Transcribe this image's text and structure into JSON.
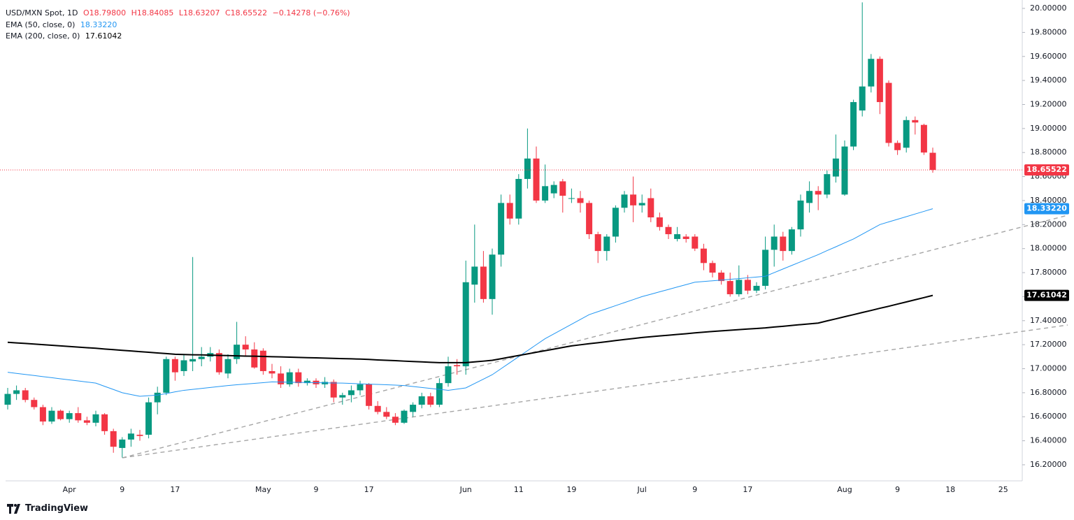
{
  "chart_data": {
    "type": "candlestick",
    "title": "USD/MXN Spot, 1D",
    "header_labels": {
      "open": "O18.79800",
      "high": "H18.84085",
      "low": "L18.63207",
      "close": "C18.65522",
      "change": "−0.14278 (−0.76%)"
    },
    "last_label": "18.65522",
    "up_color": "#089981",
    "down_color": "#f23645",
    "categories": [
      null,
      null,
      null,
      null,
      null,
      null,
      null,
      "Apr",
      null,
      null,
      null,
      null,
      null,
      "9",
      null,
      null,
      null,
      null,
      null,
      "17",
      null,
      null,
      null,
      null,
      null,
      null,
      null,
      null,
      null,
      "May",
      null,
      null,
      null,
      null,
      null,
      "9",
      null,
      null,
      null,
      null,
      null,
      "17",
      null,
      null,
      null,
      null,
      null,
      null,
      null,
      null,
      null,
      null,
      "Jun",
      null,
      null,
      null,
      null,
      null,
      "11",
      null,
      null,
      null,
      null,
      null,
      "19",
      null,
      null,
      null,
      null,
      null,
      null,
      null,
      "Jul",
      null,
      null,
      null,
      null,
      null,
      "9",
      null,
      null,
      null,
      null,
      null,
      "17",
      null,
      null,
      null,
      null,
      null,
      null,
      null,
      null,
      null,
      null,
      "Aug",
      null,
      null,
      null,
      null,
      null,
      "9",
      null,
      null,
      null,
      null,
      null,
      "18",
      null,
      null,
      null,
      null,
      null,
      "25"
    ],
    "open": [
      16.7,
      16.79,
      16.82,
      16.74,
      16.68,
      16.56,
      16.65,
      16.58,
      16.63,
      16.57,
      16.55,
      16.62,
      16.48,
      16.34,
      16.41,
      16.45,
      16.45,
      16.72,
      16.8,
      17.08,
      16.98,
      17.06,
      17.08,
      17.1,
      17.13,
      16.96,
      17.08,
      17.2,
      17.16,
      17.15,
      16.98,
      16.96,
      16.87,
      16.97,
      16.88,
      16.9,
      16.87,
      16.89,
      16.76,
      16.78,
      16.82,
      16.87,
      16.69,
      16.64,
      16.6,
      16.55,
      16.64,
      16.7,
      16.77,
      16.7,
      16.88,
      17.03,
      17.02,
      17.7,
      17.85,
      17.58,
      17.95,
      18.38,
      18.25,
      18.58,
      18.75,
      18.4,
      18.46,
      18.56,
      18.42,
      18.42,
      18.38,
      18.12,
      17.98,
      18.1,
      18.34,
      18.45,
      18.36,
      18.42,
      18.26,
      18.18,
      18.08,
      18.1,
      18.1,
      18.0,
      17.88,
      17.8,
      17.73,
      17.62,
      17.74,
      17.65,
      17.69,
      17.99,
      18.1,
      17.98,
      18.16,
      18.38,
      18.48,
      18.45,
      18.6,
      18.45,
      18.85,
      19.15,
      19.35,
      19.58,
      19.38,
      18.88,
      18.84,
      19.07,
      19.03,
      18.798,
      null,
      null,
      null,
      null,
      null,
      null,
      null,
      null
    ],
    "high": [
      16.84,
      16.86,
      16.84,
      16.76,
      16.7,
      16.68,
      16.66,
      16.65,
      16.68,
      16.6,
      16.65,
      16.63,
      16.5,
      16.43,
      16.5,
      16.49,
      16.76,
      16.85,
      17.1,
      17.1,
      17.12,
      17.93,
      17.18,
      17.18,
      17.16,
      17.12,
      17.39,
      17.27,
      17.22,
      17.17,
      17.04,
      17.02,
      17.0,
      17.0,
      16.92,
      16.92,
      16.93,
      16.91,
      16.8,
      16.86,
      16.9,
      16.88,
      16.73,
      16.68,
      16.63,
      16.66,
      16.72,
      16.8,
      16.8,
      16.92,
      17.1,
      17.08,
      17.9,
      18.2,
      17.98,
      18.0,
      18.45,
      18.45,
      18.62,
      19.0,
      18.85,
      18.7,
      18.56,
      18.58,
      18.5,
      18.48,
      18.4,
      18.14,
      18.12,
      18.36,
      18.48,
      18.6,
      18.45,
      18.5,
      18.3,
      18.2,
      18.18,
      18.12,
      18.12,
      18.04,
      17.9,
      17.82,
      17.8,
      17.86,
      17.78,
      17.72,
      18.1,
      18.2,
      18.14,
      18.18,
      18.45,
      18.56,
      18.52,
      18.65,
      18.95,
      18.9,
      19.24,
      20.05,
      19.62,
      19.6,
      19.4,
      18.9,
      19.1,
      19.1,
      19.04,
      18.84085,
      null,
      null,
      null,
      null,
      null,
      null,
      null,
      null
    ],
    "low": [
      16.66,
      16.74,
      16.72,
      16.66,
      16.53,
      16.54,
      16.57,
      16.55,
      16.55,
      16.53,
      16.52,
      16.45,
      16.3,
      16.26,
      16.35,
      16.4,
      16.42,
      16.62,
      16.78,
      16.9,
      16.94,
      16.98,
      17.02,
      17.06,
      16.95,
      16.92,
      17.04,
      17.1,
      17.0,
      16.95,
      16.92,
      16.84,
      16.85,
      16.85,
      16.86,
      16.84,
      16.84,
      16.72,
      16.7,
      16.72,
      16.78,
      16.66,
      16.62,
      16.58,
      16.53,
      16.54,
      16.6,
      16.67,
      16.68,
      16.68,
      16.85,
      16.95,
      16.95,
      17.55,
      17.55,
      17.45,
      17.85,
      18.2,
      18.2,
      18.5,
      18.38,
      18.38,
      18.42,
      18.3,
      18.38,
      18.3,
      18.08,
      17.88,
      17.9,
      18.05,
      18.3,
      18.22,
      18.3,
      18.22,
      18.15,
      18.08,
      18.06,
      18.05,
      17.98,
      17.82,
      17.76,
      17.7,
      17.6,
      17.6,
      17.62,
      17.63,
      17.66,
      17.85,
      17.9,
      17.95,
      18.1,
      18.3,
      18.32,
      18.42,
      18.55,
      18.44,
      18.82,
      19.1,
      19.3,
      19.12,
      18.85,
      18.78,
      18.8,
      18.95,
      18.78,
      18.63207,
      null,
      null,
      null,
      null,
      null,
      null,
      null,
      null
    ],
    "close": [
      16.79,
      16.82,
      16.74,
      16.68,
      16.56,
      16.65,
      16.58,
      16.63,
      16.57,
      16.55,
      16.62,
      16.48,
      16.35,
      16.41,
      16.46,
      16.44,
      16.72,
      16.8,
      17.08,
      16.97,
      17.07,
      17.08,
      17.1,
      17.13,
      16.97,
      17.08,
      17.2,
      17.16,
      17.01,
      16.98,
      16.96,
      16.87,
      16.97,
      16.88,
      16.9,
      16.87,
      16.89,
      16.76,
      16.78,
      16.82,
      16.87,
      16.69,
      16.64,
      16.6,
      16.55,
      16.65,
      16.7,
      16.77,
      16.7,
      16.88,
      17.02,
      17.02,
      17.72,
      17.85,
      17.58,
      17.95,
      18.38,
      18.25,
      18.58,
      18.75,
      18.4,
      18.52,
      18.53,
      18.44,
      18.42,
      18.38,
      18.12,
      17.98,
      18.1,
      18.34,
      18.45,
      18.36,
      18.38,
      18.26,
      18.18,
      18.12,
      18.12,
      18.08,
      18.0,
      17.88,
      17.8,
      17.73,
      17.62,
      17.74,
      17.65,
      17.69,
      17.99,
      18.1,
      17.98,
      18.16,
      18.4,
      18.48,
      18.45,
      18.62,
      18.75,
      18.85,
      19.22,
      19.35,
      19.58,
      19.22,
      18.88,
      18.82,
      19.07,
      19.05,
      18.8,
      18.65522,
      null,
      null,
      null,
      null,
      null,
      null,
      null,
      null
    ],
    "series": [
      {
        "name": "EMA (50, close, 0)",
        "color": "#2196f3",
        "last_label": "18.33220",
        "values": [
          16.97,
          16.961,
          16.952,
          16.943,
          16.934,
          16.925,
          16.916,
          16.907,
          16.898,
          16.889,
          16.88,
          16.853,
          16.827,
          16.8,
          16.785,
          16.77,
          16.775,
          16.78,
          16.793,
          16.807,
          16.82,
          16.828,
          16.836,
          16.844,
          16.852,
          16.86,
          16.866,
          16.872,
          16.878,
          16.884,
          16.89,
          16.889,
          16.887,
          16.886,
          16.885,
          16.884,
          16.882,
          16.881,
          16.88,
          16.877,
          16.874,
          16.871,
          16.869,
          16.866,
          16.863,
          16.86,
          16.852,
          16.844,
          16.836,
          16.828,
          16.82,
          16.83,
          16.84,
          16.877,
          16.913,
          16.95,
          17.0,
          17.05,
          17.1,
          17.15,
          17.2,
          17.25,
          17.29,
          17.33,
          17.37,
          17.41,
          17.45,
          17.475,
          17.5,
          17.525,
          17.55,
          17.575,
          17.6,
          17.62,
          17.64,
          17.66,
          17.68,
          17.7,
          17.72,
          17.726,
          17.732,
          17.738,
          17.744,
          17.75,
          17.757,
          17.763,
          17.77,
          17.8,
          17.83,
          17.86,
          17.89,
          17.92,
          17.95,
          17.983,
          18.015,
          18.048,
          18.08,
          18.12,
          18.16,
          18.2,
          18.222,
          18.244,
          18.266,
          18.288,
          18.31,
          18.3322,
          null,
          null,
          null,
          null,
          null,
          null,
          null,
          null
        ]
      },
      {
        "name": "EMA (200, close, 0)",
        "color": "#000000",
        "last_label": "17.61042",
        "values": [
          17.22,
          17.215,
          17.21,
          17.205,
          17.2,
          17.195,
          17.19,
          17.185,
          17.18,
          17.175,
          17.17,
          17.164,
          17.159,
          17.153,
          17.148,
          17.142,
          17.137,
          17.131,
          17.126,
          17.12,
          17.118,
          17.116,
          17.115,
          17.113,
          17.111,
          17.109,
          17.107,
          17.105,
          17.104,
          17.102,
          17.1,
          17.098,
          17.096,
          17.094,
          17.092,
          17.09,
          17.088,
          17.086,
          17.084,
          17.082,
          17.08,
          17.077,
          17.073,
          17.07,
          17.067,
          17.063,
          17.06,
          17.057,
          17.053,
          17.05,
          17.05,
          17.05,
          17.05,
          17.057,
          17.063,
          17.07,
          17.083,
          17.097,
          17.11,
          17.123,
          17.137,
          17.15,
          17.163,
          17.177,
          17.19,
          17.199,
          17.208,
          17.216,
          17.225,
          17.234,
          17.243,
          17.251,
          17.26,
          17.266,
          17.273,
          17.279,
          17.285,
          17.291,
          17.298,
          17.304,
          17.31,
          17.315,
          17.32,
          17.325,
          17.33,
          17.335,
          17.34,
          17.347,
          17.353,
          17.36,
          17.367,
          17.373,
          17.38,
          17.398,
          17.415,
          17.433,
          17.45,
          17.468,
          17.485,
          17.503,
          17.52,
          17.538,
          17.556,
          17.574,
          17.592,
          17.61042,
          null,
          null,
          null,
          null,
          null,
          null,
          null,
          null
        ]
      }
    ],
    "ylim": [
      16.066,
      20.07
    ],
    "yticks": [
      {
        "value": 16.2,
        "label": "16.20000"
      },
      {
        "value": 16.4,
        "label": "16.40000"
      },
      {
        "value": 16.6,
        "label": "16.60000"
      },
      {
        "value": 16.8,
        "label": "16.80000"
      },
      {
        "value": 17.0,
        "label": "17.00000"
      },
      {
        "value": 17.2,
        "label": "17.20000"
      },
      {
        "value": 17.4,
        "label": "17.40000"
      },
      {
        "value": 17.6,
        "label": "17.60000"
      },
      {
        "value": 17.8,
        "label": "17.80000"
      },
      {
        "value": 18.0,
        "label": "18.00000"
      },
      {
        "value": 18.2,
        "label": "18.20000"
      },
      {
        "value": 18.4,
        "label": "18.40000"
      },
      {
        "value": 18.6,
        "label": "18.60000"
      },
      {
        "value": 18.8,
        "label": "18.80000"
      },
      {
        "value": 19.0,
        "label": "19.00000"
      },
      {
        "value": 19.2,
        "label": "19.20000"
      },
      {
        "value": 19.4,
        "label": "19.40000"
      },
      {
        "value": 19.6,
        "label": "19.60000"
      },
      {
        "value": 19.8,
        "label": "19.80000"
      },
      {
        "value": 20.0,
        "label": "20.00000"
      }
    ],
    "grid": false,
    "footer": "TradingView"
  }
}
